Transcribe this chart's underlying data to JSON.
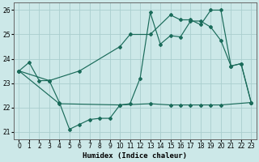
{
  "xlabel": "Humidex (Indice chaleur)",
  "bg_color": "#cce8e8",
  "line_color": "#1a6b5a",
  "grid_color": "#aacece",
  "xlim": [
    -0.5,
    23.5
  ],
  "ylim": [
    20.7,
    26.3
  ],
  "yticks": [
    21,
    22,
    23,
    24,
    25,
    26
  ],
  "xticks": [
    0,
    1,
    2,
    3,
    4,
    5,
    6,
    7,
    8,
    9,
    10,
    11,
    12,
    13,
    14,
    15,
    16,
    17,
    18,
    19,
    20,
    21,
    22,
    23
  ],
  "line_zigzag_x": [
    0,
    1,
    2,
    3,
    4,
    5,
    6,
    7,
    8,
    9,
    10,
    11,
    12,
    13,
    14,
    15,
    16,
    17,
    18,
    19,
    20,
    21,
    22,
    23
  ],
  "line_zigzag_y": [
    23.5,
    23.85,
    23.1,
    23.1,
    22.2,
    21.1,
    21.3,
    21.5,
    21.55,
    21.55,
    22.1,
    22.15,
    23.2,
    25.9,
    24.6,
    24.95,
    24.9,
    25.55,
    25.55,
    25.3,
    24.75,
    23.7,
    23.8,
    22.2
  ],
  "line_flat_x": [
    0,
    4,
    10,
    13,
    15,
    16,
    17,
    18,
    19,
    20,
    23
  ],
  "line_flat_y": [
    23.5,
    22.15,
    22.1,
    22.15,
    22.1,
    22.1,
    22.1,
    22.1,
    22.1,
    22.1,
    22.2
  ],
  "line_rise_x": [
    0,
    3,
    6,
    10,
    11,
    13,
    15,
    16,
    17,
    18,
    19,
    20,
    21,
    22,
    23
  ],
  "line_rise_y": [
    23.5,
    23.1,
    23.5,
    24.5,
    25.0,
    25.0,
    25.8,
    25.6,
    25.6,
    25.4,
    26.0,
    26.0,
    23.7,
    23.8,
    22.2
  ]
}
